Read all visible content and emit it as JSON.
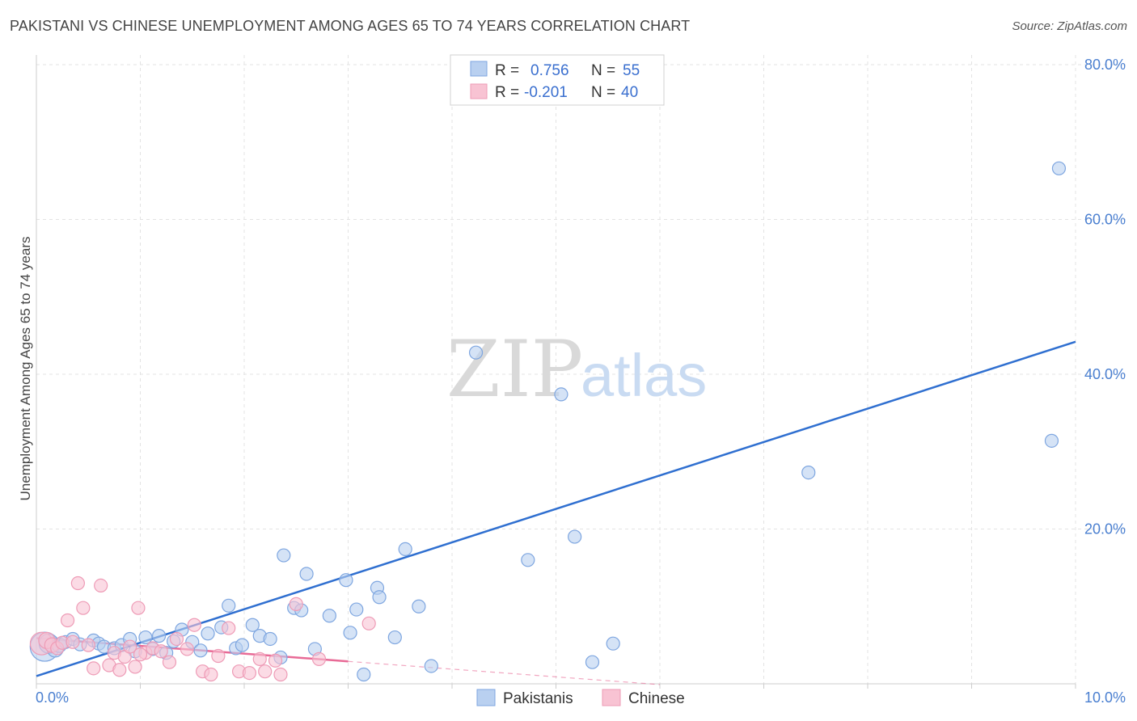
{
  "title": "PAKISTANI VS CHINESE UNEMPLOYMENT AMONG AGES 65 TO 74 YEARS CORRELATION CHART",
  "source": "Source: ZipAtlas.com",
  "watermark": {
    "zip": "ZIP",
    "atlas": "atlas"
  },
  "colors": {
    "pakistani_fill": "#b9d0f0",
    "pakistani_stroke": "#7ea6e0",
    "pakistani_line": "#2f6fd0",
    "chinese_fill": "#f8c3d3",
    "chinese_stroke": "#ee9bb6",
    "chinese_line": "#e86a96",
    "grid": "#e3e3e3",
    "tick_text": "#4a7fd0"
  },
  "stats": [
    {
      "r_label": "R =",
      "r": "0.756",
      "n_label": "N =",
      "n": "55"
    },
    {
      "r_label": "R =",
      "r": "-0.201",
      "n_label": "N =",
      "n": "40"
    }
  ],
  "chart_data": {
    "type": "scatter",
    "title": "PAKISTANI VS CHINESE UNEMPLOYMENT AMONG AGES 65 TO 74 YEARS CORRELATION CHART",
    "xlabel": "",
    "ylabel": "Unemployment Among Ages 65 to 74 years",
    "xlim": [
      0,
      10
    ],
    "ylim": [
      0,
      80
    ],
    "x_tick_labels": [
      "0.0%",
      "10.0%"
    ],
    "y_ticks": [
      20,
      40,
      60,
      80
    ],
    "y_tick_labels": [
      "20.0%",
      "40.0%",
      "60.0%",
      "80.0%"
    ],
    "grid": true,
    "legend_position": "bottom-center",
    "series": [
      {
        "name": "Pakistanis",
        "r": 0.756,
        "n": 55,
        "trend": {
          "x": [
            0.0,
            10.0
          ],
          "y": [
            1.0,
            44.2
          ]
        },
        "points": [
          {
            "x": 0.08,
            "y": 4.8,
            "s": 18
          },
          {
            "x": 0.12,
            "y": 5.2,
            "s": 12
          },
          {
            "x": 0.18,
            "y": 4.5,
            "s": 10
          },
          {
            "x": 0.22,
            "y": 5.0,
            "s": 9
          },
          {
            "x": 0.28,
            "y": 5.4,
            "s": 8
          },
          {
            "x": 0.35,
            "y": 5.8,
            "s": 8
          },
          {
            "x": 0.42,
            "y": 5.1,
            "s": 8
          },
          {
            "x": 0.55,
            "y": 5.6,
            "s": 8
          },
          {
            "x": 0.6,
            "y": 5.2,
            "s": 8
          },
          {
            "x": 0.65,
            "y": 4.8,
            "s": 8
          },
          {
            "x": 0.75,
            "y": 4.6,
            "s": 8
          },
          {
            "x": 0.82,
            "y": 5.0,
            "s": 8
          },
          {
            "x": 0.9,
            "y": 5.8,
            "s": 8
          },
          {
            "x": 0.95,
            "y": 4.2,
            "s": 8
          },
          {
            "x": 1.05,
            "y": 6.0,
            "s": 8
          },
          {
            "x": 1.12,
            "y": 4.5,
            "s": 8
          },
          {
            "x": 1.18,
            "y": 6.2,
            "s": 8
          },
          {
            "x": 1.25,
            "y": 4.0,
            "s": 8
          },
          {
            "x": 1.32,
            "y": 5.5,
            "s": 8
          },
          {
            "x": 1.4,
            "y": 7.0,
            "s": 8
          },
          {
            "x": 1.5,
            "y": 5.4,
            "s": 8
          },
          {
            "x": 1.58,
            "y": 4.3,
            "s": 8
          },
          {
            "x": 1.65,
            "y": 6.5,
            "s": 8
          },
          {
            "x": 1.78,
            "y": 7.3,
            "s": 8
          },
          {
            "x": 1.85,
            "y": 10.1,
            "s": 8
          },
          {
            "x": 1.92,
            "y": 4.6,
            "s": 8
          },
          {
            "x": 1.98,
            "y": 5.0,
            "s": 8
          },
          {
            "x": 2.08,
            "y": 7.6,
            "s": 8
          },
          {
            "x": 2.15,
            "y": 6.2,
            "s": 8
          },
          {
            "x": 2.25,
            "y": 5.8,
            "s": 8
          },
          {
            "x": 2.35,
            "y": 3.4,
            "s": 8
          },
          {
            "x": 2.38,
            "y": 16.6,
            "s": 8
          },
          {
            "x": 2.48,
            "y": 9.8,
            "s": 8
          },
          {
            "x": 2.55,
            "y": 9.5,
            "s": 8
          },
          {
            "x": 2.6,
            "y": 14.2,
            "s": 8
          },
          {
            "x": 2.68,
            "y": 4.5,
            "s": 8
          },
          {
            "x": 2.82,
            "y": 8.8,
            "s": 8
          },
          {
            "x": 2.98,
            "y": 13.4,
            "s": 8
          },
          {
            "x": 3.02,
            "y": 6.6,
            "s": 8
          },
          {
            "x": 3.08,
            "y": 9.6,
            "s": 8
          },
          {
            "x": 3.15,
            "y": 1.2,
            "s": 8
          },
          {
            "x": 3.28,
            "y": 12.4,
            "s": 8
          },
          {
            "x": 3.3,
            "y": 11.2,
            "s": 8
          },
          {
            "x": 3.45,
            "y": 6.0,
            "s": 8
          },
          {
            "x": 3.55,
            "y": 17.4,
            "s": 8
          },
          {
            "x": 3.68,
            "y": 10.0,
            "s": 8
          },
          {
            "x": 3.8,
            "y": 2.3,
            "s": 8
          },
          {
            "x": 4.23,
            "y": 42.8,
            "s": 8
          },
          {
            "x": 4.73,
            "y": 16.0,
            "s": 8
          },
          {
            "x": 5.05,
            "y": 37.4,
            "s": 8
          },
          {
            "x": 5.18,
            "y": 19.0,
            "s": 8
          },
          {
            "x": 5.35,
            "y": 2.8,
            "s": 8
          },
          {
            "x": 5.55,
            "y": 5.2,
            "s": 8
          },
          {
            "x": 7.43,
            "y": 27.3,
            "s": 8
          },
          {
            "x": 9.77,
            "y": 31.4,
            "s": 8
          },
          {
            "x": 9.84,
            "y": 66.6,
            "s": 8
          }
        ]
      },
      {
        "name": "Chinese",
        "r": -0.201,
        "n": 40,
        "trend": {
          "x": [
            0.0,
            3.0
          ],
          "y": [
            5.9,
            2.9
          ]
        },
        "trend_dashed": {
          "x": [
            3.0,
            6.0
          ],
          "y": [
            2.9,
            -0.1
          ]
        },
        "points": [
          {
            "x": 0.05,
            "y": 5.2,
            "s": 14
          },
          {
            "x": 0.1,
            "y": 5.6,
            "s": 10
          },
          {
            "x": 0.15,
            "y": 5.0,
            "s": 9
          },
          {
            "x": 0.2,
            "y": 4.6,
            "s": 8
          },
          {
            "x": 0.25,
            "y": 5.3,
            "s": 8
          },
          {
            "x": 0.3,
            "y": 8.2,
            "s": 8
          },
          {
            "x": 0.35,
            "y": 5.4,
            "s": 8
          },
          {
            "x": 0.4,
            "y": 13.0,
            "s": 8
          },
          {
            "x": 0.45,
            "y": 9.8,
            "s": 8
          },
          {
            "x": 0.5,
            "y": 5.0,
            "s": 8
          },
          {
            "x": 0.55,
            "y": 2.0,
            "s": 8
          },
          {
            "x": 0.62,
            "y": 12.7,
            "s": 8
          },
          {
            "x": 0.7,
            "y": 2.4,
            "s": 8
          },
          {
            "x": 0.75,
            "y": 4.0,
            "s": 8
          },
          {
            "x": 0.8,
            "y": 1.8,
            "s": 8
          },
          {
            "x": 0.85,
            "y": 3.5,
            "s": 8
          },
          {
            "x": 0.9,
            "y": 4.8,
            "s": 8
          },
          {
            "x": 0.95,
            "y": 2.2,
            "s": 8
          },
          {
            "x": 0.98,
            "y": 9.8,
            "s": 8
          },
          {
            "x": 1.05,
            "y": 4.0,
            "s": 8
          },
          {
            "x": 1.12,
            "y": 4.6,
            "s": 8
          },
          {
            "x": 1.2,
            "y": 4.2,
            "s": 8
          },
          {
            "x": 1.28,
            "y": 2.8,
            "s": 8
          },
          {
            "x": 1.35,
            "y": 5.8,
            "s": 8
          },
          {
            "x": 1.45,
            "y": 4.5,
            "s": 8
          },
          {
            "x": 1.52,
            "y": 7.6,
            "s": 8
          },
          {
            "x": 1.6,
            "y": 1.6,
            "s": 8
          },
          {
            "x": 1.68,
            "y": 1.2,
            "s": 8
          },
          {
            "x": 1.75,
            "y": 3.6,
            "s": 8
          },
          {
            "x": 1.85,
            "y": 7.2,
            "s": 8
          },
          {
            "x": 1.95,
            "y": 1.6,
            "s": 8
          },
          {
            "x": 2.05,
            "y": 1.4,
            "s": 8
          },
          {
            "x": 2.15,
            "y": 3.2,
            "s": 8
          },
          {
            "x": 2.2,
            "y": 1.6,
            "s": 8
          },
          {
            "x": 2.3,
            "y": 3.0,
            "s": 8
          },
          {
            "x": 2.35,
            "y": 1.2,
            "s": 8
          },
          {
            "x": 2.5,
            "y": 10.3,
            "s": 8
          },
          {
            "x": 2.72,
            "y": 3.2,
            "s": 8
          },
          {
            "x": 3.2,
            "y": 7.8,
            "s": 8
          },
          {
            "x": 1.0,
            "y": 3.8,
            "s": 8
          }
        ]
      }
    ]
  }
}
